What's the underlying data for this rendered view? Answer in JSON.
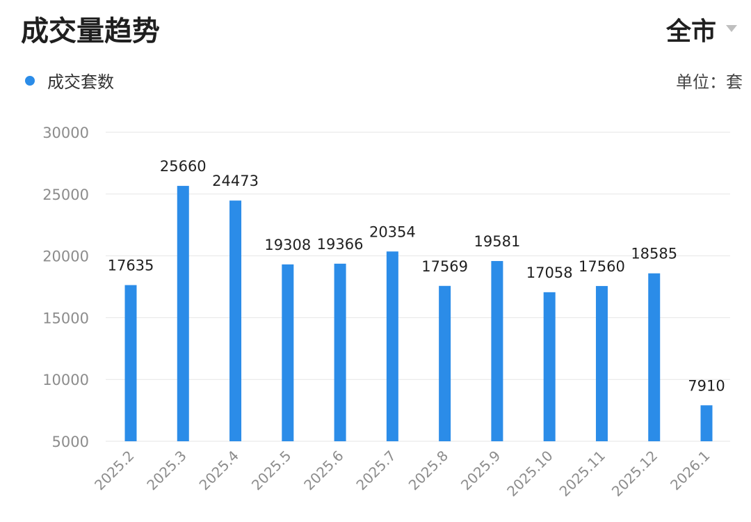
{
  "header": {
    "title": "成交量趋势",
    "city": "全市",
    "dropdown_icon": "caret-down-icon"
  },
  "legend": {
    "label": "成交套数",
    "color": "#2b8ce8"
  },
  "unit_label": "单位：套",
  "chart_data": {
    "type": "bar",
    "categories": [
      "2025.2",
      "2025.3",
      "2025.4",
      "2025.5",
      "2025.6",
      "2025.7",
      "2025.8",
      "2025.9",
      "2025.10",
      "2025.11",
      "2025.12",
      "2026.1"
    ],
    "series": [
      {
        "name": "成交套数",
        "values": [
          17635,
          25660,
          24473,
          19308,
          19366,
          20354,
          17569,
          19581,
          17058,
          17560,
          18585,
          7910
        ]
      }
    ],
    "yticks": [
      5000,
      10000,
      15000,
      20000,
      25000,
      30000
    ],
    "ylim": [
      5000,
      30000
    ],
    "grid": true,
    "bar_color": "#2b8ce8"
  }
}
